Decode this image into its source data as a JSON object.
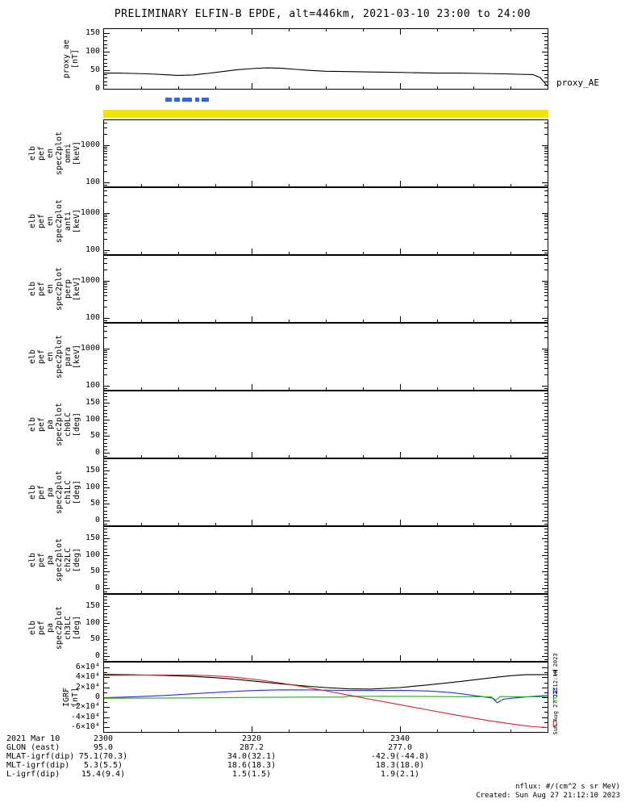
{
  "title": "PRELIMINARY ELFIN-B EPDE, alt=446km, 2021-03-10 23:00 to 24:00",
  "right_labels": {
    "proxy": "proxy_AE"
  },
  "colors": {
    "proxy_line": "#000000",
    "availability": "#2e6bd8",
    "highlight": "#f2e40a",
    "igrf_T": "#000000",
    "igrf_N": "#2233cc",
    "igrf_E": "#22aa22",
    "igrf_D": "#cc2222"
  },
  "panels": [
    {
      "id": "proxy-ae",
      "label_lines": [
        "proxy_ae",
        "[nT]"
      ],
      "scale": "linear",
      "yrange": [
        0,
        160
      ],
      "yticks": [
        {
          "v": 0,
          "label": "0"
        },
        {
          "v": 50,
          "label": "50"
        },
        {
          "v": 100,
          "label": "100"
        },
        {
          "v": 150,
          "label": "150"
        }
      ]
    },
    {
      "id": "en-spec2plot-omni",
      "label_lines": [
        "elb",
        "pef",
        "en",
        "spec2plot",
        "omni",
        "[keV]"
      ],
      "scale": "log",
      "yrange": [
        80,
        4600
      ],
      "yticks": [
        {
          "v": 100,
          "label": "100"
        },
        {
          "v": 1000,
          "label": "1000"
        }
      ]
    },
    {
      "id": "en-spec2plot-anti",
      "label_lines": [
        "elb",
        "pef",
        "en",
        "spec2plot",
        "anti",
        "[keV]"
      ],
      "scale": "log",
      "yrange": [
        80,
        4600
      ],
      "yticks": [
        {
          "v": 100,
          "label": "100"
        },
        {
          "v": 1000,
          "label": "1000"
        }
      ]
    },
    {
      "id": "en-spec2plot-perp",
      "label_lines": [
        "elb",
        "pef",
        "en",
        "spec2plot",
        "perp",
        "[keV]"
      ],
      "scale": "log",
      "yrange": [
        80,
        4600
      ],
      "yticks": [
        {
          "v": 100,
          "label": "100"
        },
        {
          "v": 1000,
          "label": "1000"
        }
      ]
    },
    {
      "id": "en-spec2plot-para",
      "label_lines": [
        "elb",
        "pef",
        "en",
        "spec2plot",
        "para",
        "[keV]"
      ],
      "scale": "log",
      "yrange": [
        80,
        4600
      ],
      "yticks": [
        {
          "v": 100,
          "label": "100"
        },
        {
          "v": 1000,
          "label": "1000"
        }
      ]
    },
    {
      "id": "pa-spec2plot-ch0lc",
      "label_lines": [
        "elb",
        "pef",
        "pa",
        "spec2plot",
        "ch0LC",
        "[deg]"
      ],
      "scale": "linear",
      "yrange": [
        -15,
        185
      ],
      "yticks": [
        {
          "v": 0,
          "label": "0"
        },
        {
          "v": 50,
          "label": "50"
        },
        {
          "v": 100,
          "label": "100"
        },
        {
          "v": 150,
          "label": "150"
        }
      ]
    },
    {
      "id": "pa-spec2plot-ch1lc",
      "label_lines": [
        "elb",
        "pef",
        "pa",
        "spec2plot",
        "ch1LC",
        "[deg]"
      ],
      "scale": "linear",
      "yrange": [
        -15,
        185
      ],
      "yticks": [
        {
          "v": 0,
          "label": "0"
        },
        {
          "v": 50,
          "label": "50"
        },
        {
          "v": 100,
          "label": "100"
        },
        {
          "v": 150,
          "label": "150"
        }
      ]
    },
    {
      "id": "pa-spec2plot-ch2lc",
      "label_lines": [
        "elb",
        "pef",
        "pa",
        "spec2plot",
        "ch2LC",
        "[deg]"
      ],
      "scale": "linear",
      "yrange": [
        -15,
        185
      ],
      "yticks": [
        {
          "v": 0,
          "label": "0"
        },
        {
          "v": 50,
          "label": "50"
        },
        {
          "v": 100,
          "label": "100"
        },
        {
          "v": 150,
          "label": "150"
        }
      ]
    },
    {
      "id": "pa-spec2plot-ch3lc",
      "label_lines": [
        "elb",
        "pef",
        "pa",
        "spec2plot",
        "ch3LC",
        "[deg]"
      ],
      "scale": "linear",
      "yrange": [
        -15,
        185
      ],
      "yticks": [
        {
          "v": 0,
          "label": "0"
        },
        {
          "v": 50,
          "label": "50"
        },
        {
          "v": 100,
          "label": "100"
        },
        {
          "v": 150,
          "label": "150"
        }
      ]
    },
    {
      "id": "igrf",
      "label_lines": [
        "IGRF",
        "[nT]"
      ],
      "scale": "linear",
      "yrange": [
        -70000,
        70000
      ],
      "yticks": [
        {
          "v": -60000,
          "label": "-6×10⁴"
        },
        {
          "v": -40000,
          "label": "-4×10⁴"
        },
        {
          "v": -20000,
          "label": "-2×10⁴"
        },
        {
          "v": 0,
          "label": "0"
        },
        {
          "v": 20000,
          "label": "2×10⁴"
        },
        {
          "v": 40000,
          "label": "4×10⁴"
        },
        {
          "v": 60000,
          "label": "6×10⁴"
        }
      ]
    }
  ],
  "xaxis": {
    "date_label": "2021 Mar 10",
    "tick_labels": [
      "2300",
      "2320",
      "2340"
    ],
    "tick_minutes": [
      0,
      20,
      40
    ],
    "minor_step_minutes": 5,
    "range_minutes": [
      0,
      60
    ]
  },
  "chart_data": [
    {
      "type": "line",
      "name": "proxy_AE",
      "panel": "proxy-ae",
      "ylabel": "proxy_ae [nT]",
      "ylim": [
        0,
        160
      ],
      "x_minutes": [
        0,
        2,
        4,
        6,
        8,
        10,
        12,
        14,
        16,
        18,
        20,
        22,
        24,
        26,
        28,
        30,
        33,
        36,
        39,
        42,
        45,
        48,
        51,
        54,
        56,
        58,
        59,
        60
      ],
      "values": [
        42,
        42,
        41,
        40,
        38,
        36,
        37,
        41,
        46,
        51,
        54,
        56,
        55,
        52,
        49,
        47,
        46,
        45,
        44,
        43,
        42,
        42,
        41,
        40,
        39,
        38,
        30,
        7
      ],
      "color": "proxy_line"
    },
    {
      "type": "segments",
      "name": "data-availability-bar",
      "color": "availability",
      "segments_minutes": [
        [
          8.4,
          9.2
        ],
        [
          9.6,
          10.3
        ],
        [
          10.7,
          12.0
        ],
        [
          12.4,
          12.9
        ],
        [
          13.3,
          14.2
        ]
      ]
    },
    {
      "type": "bar-span",
      "name": "survey-highlight-bar",
      "color": "highlight",
      "segments_minutes": [
        [
          0,
          60
        ]
      ]
    },
    {
      "type": "line",
      "name": "IGRF",
      "panel": "igrf",
      "ylabel": "IGRF [nT]",
      "ylim": [
        -70000,
        70000
      ],
      "series": [
        {
          "name": "T",
          "color": "igrf_T",
          "x": [
            0,
            4,
            8,
            12,
            15,
            18,
            21,
            24,
            27,
            30,
            33,
            36,
            40,
            44,
            48,
            52,
            55,
            57,
            60
          ],
          "y": [
            46000,
            45200,
            44000,
            42000,
            39500,
            36000,
            31500,
            27000,
            23000,
            19500,
            17000,
            16500,
            19500,
            25000,
            31500,
            38500,
            43500,
            45500,
            45800
          ]
        },
        {
          "name": "N",
          "color": "igrf_N",
          "x": [
            0,
            4,
            8,
            12,
            16,
            20,
            24,
            28,
            32,
            36,
            40,
            44,
            47,
            49,
            51,
            52.5,
            53.2,
            54,
            55.5,
            57,
            60
          ],
          "y": [
            -1000,
            1000,
            3500,
            7000,
            10500,
            13500,
            15000,
            14800,
            13800,
            13500,
            14000,
            12500,
            9500,
            5500,
            1500,
            -1500,
            -11000,
            -4000,
            -1500,
            500,
            4000
          ]
        },
        {
          "name": "E",
          "color": "igrf_E",
          "x": [
            0,
            5,
            10,
            15,
            20,
            25,
            30,
            32.5,
            33,
            36,
            40,
            44,
            48,
            51,
            52.4,
            53,
            53.6,
            55,
            57,
            60
          ],
          "y": [
            -2000,
            -1800,
            -1400,
            -900,
            -400,
            100,
            300,
            300,
            2000,
            2000,
            1800,
            1500,
            1200,
            900,
            600,
            -6000,
            1400,
            1200,
            1000,
            800
          ]
        },
        {
          "name": "D",
          "color": "igrf_D",
          "x": [
            0,
            4,
            8,
            12,
            15,
            18,
            21,
            24,
            27,
            30,
            33,
            36,
            40,
            44,
            48,
            52,
            55,
            58,
            60
          ],
          "y": [
            44000,
            44600,
            45000,
            44600,
            43200,
            40000,
            35000,
            28500,
            21000,
            13000,
            4500,
            -4000,
            -15000,
            -26000,
            -37000,
            -47000,
            -53500,
            -59500,
            -61000
          ]
        }
      ]
    }
  ],
  "bottom_table": {
    "rows": [
      {
        "label": "GLON (east)",
        "values": [
          "95.0",
          "287.2",
          "277.0"
        ]
      },
      {
        "label": "MLAT-igrf(dip)",
        "values": [
          "75.1(70.3)",
          "34.0(32.1)",
          "-42.9(-44.8)"
        ]
      },
      {
        "label": "MLT-igrf(dip)",
        "values": [
          "5.3(5.5)",
          "18.6(18.3)",
          "18.3(18.0)"
        ]
      },
      {
        "label": "L-igrf(dip)",
        "values": [
          "15.4(9.4)",
          "1.5(1.5)",
          "1.9(2.1)"
        ]
      }
    ]
  },
  "footer": {
    "nflux": "nflux: #/(cm^2 s sr MeV)",
    "created": "Created: Sun Aug 27 21:12:10 2023",
    "side_timestamp": "Sun Aug 27 21:12:10 2023"
  }
}
